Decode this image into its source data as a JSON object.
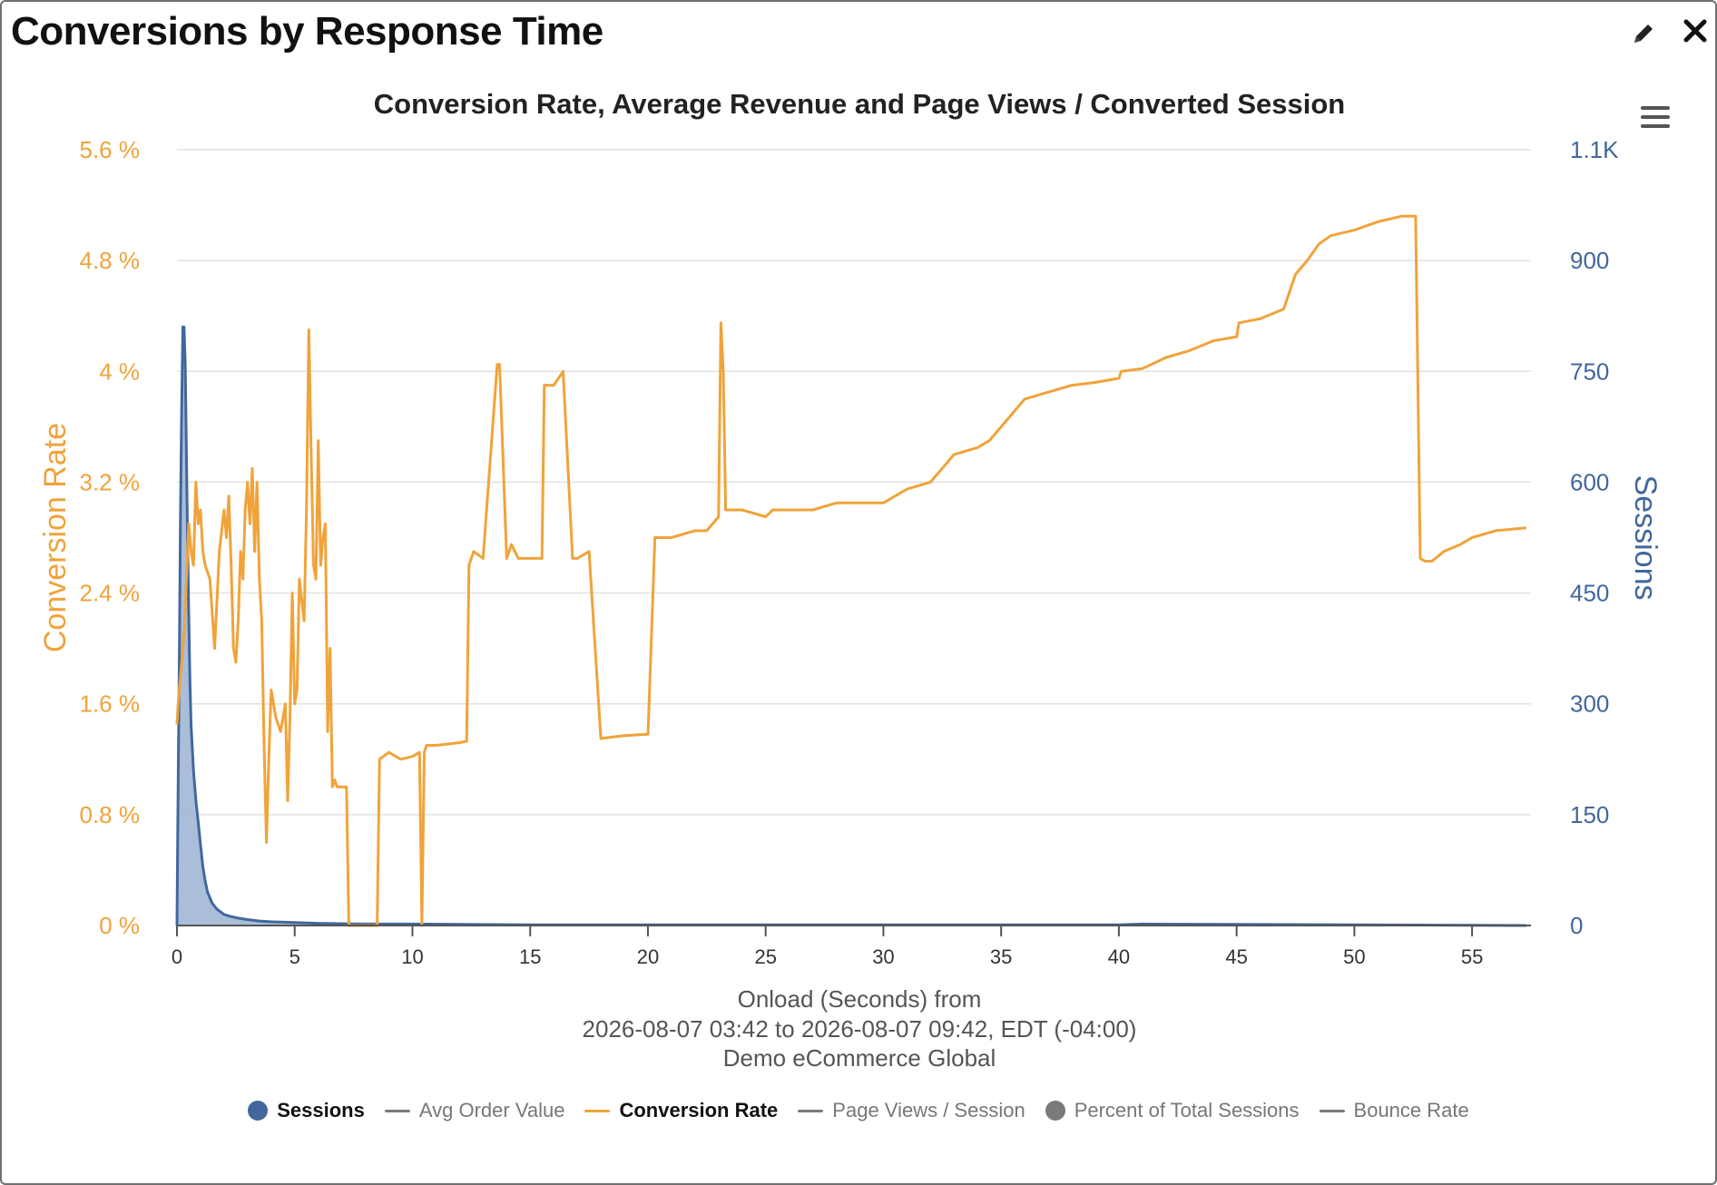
{
  "widget": {
    "title": "Conversions by Response Time",
    "icons": {
      "edit": "pencil-icon",
      "close": "close-icon",
      "menu": "hamburger-menu-icon"
    }
  },
  "chart_data": {
    "type": "line",
    "title": "Conversion Rate, Average Revenue and Page Views / Converted Session",
    "xlabel": "Onload (Seconds) from",
    "xlabel_lines": [
      "Onload (Seconds) from",
      "2026-08-07 03:42 to 2026-08-07 09:42, EDT (-04:00)",
      "Demo eCommerce Global"
    ],
    "x_ticks": [
      "0",
      "5",
      "10",
      "15",
      "20",
      "25",
      "30",
      "35",
      "40",
      "45",
      "50",
      "55"
    ],
    "xlim": [
      0,
      57.5
    ],
    "y_left": {
      "label": "Conversion Rate",
      "ticks": [
        "0 %",
        "0.8 %",
        "1.6 %",
        "2.4 %",
        "3.2 %",
        "4 %",
        "4.8 %",
        "5.6 %"
      ],
      "lim": [
        0,
        5.6
      ],
      "color": "#f0a33a"
    },
    "y_right": {
      "label": "Sessions",
      "ticks": [
        "0",
        "150",
        "300",
        "450",
        "600",
        "750",
        "900",
        "1.1K"
      ],
      "lim": [
        0,
        1050
      ],
      "color": "#41679c"
    },
    "grid": true,
    "legend_position": "bottom",
    "series": [
      {
        "name": "Sessions",
        "axis": "right",
        "kind": "area",
        "color": "#41679c",
        "fill": "#9bb3d4",
        "x": [
          0.0,
          0.05,
          0.1,
          0.15,
          0.2,
          0.25,
          0.3,
          0.35,
          0.4,
          0.45,
          0.5,
          0.55,
          0.6,
          0.7,
          0.8,
          0.9,
          1.0,
          1.1,
          1.2,
          1.3,
          1.5,
          1.7,
          2.0,
          2.3,
          2.6,
          3.0,
          3.5,
          4.0,
          5.0,
          6.0,
          8.0,
          10.0,
          15.0,
          20.0,
          30.0,
          40.0,
          41.0,
          50.0,
          57.3
        ],
        "values": [
          0,
          190,
          360,
          560,
          700,
          810,
          810,
          760,
          640,
          520,
          420,
          330,
          270,
          210,
          170,
          140,
          110,
          80,
          60,
          45,
          30,
          22,
          15,
          12,
          10,
          8,
          6,
          5,
          4,
          3,
          2,
          2,
          1,
          1,
          1,
          1,
          2,
          1,
          0
        ]
      },
      {
        "name": "Conversion Rate",
        "axis": "left",
        "kind": "line",
        "color": "#f0a33a",
        "x": [
          0.0,
          0.05,
          0.1,
          0.15,
          0.2,
          0.3,
          0.4,
          0.5,
          0.6,
          0.7,
          0.8,
          0.9,
          1.0,
          1.1,
          1.2,
          1.4,
          1.6,
          1.8,
          2.0,
          2.1,
          2.2,
          2.3,
          2.4,
          2.5,
          2.6,
          2.7,
          2.8,
          2.9,
          3.0,
          3.1,
          3.2,
          3.3,
          3.4,
          3.5,
          3.6,
          3.7,
          3.8,
          3.9,
          4.0,
          4.2,
          4.4,
          4.6,
          4.7,
          4.8,
          4.9,
          5.0,
          5.1,
          5.2,
          5.4,
          5.5,
          5.6,
          5.7,
          5.8,
          5.9,
          6.0,
          6.1,
          6.2,
          6.3,
          6.4,
          6.5,
          6.6,
          6.7,
          6.8,
          7.0,
          7.2,
          7.3,
          8.5,
          8.6,
          9.0,
          9.5,
          10.0,
          10.3,
          10.4,
          10.5,
          10.6,
          11.0,
          12.0,
          12.3,
          12.4,
          12.6,
          13.0,
          13.6,
          13.7,
          14.0,
          14.2,
          14.5,
          15.0,
          15.5,
          15.6,
          16.0,
          16.2,
          16.4,
          16.8,
          17.0,
          17.5,
          18.0,
          19.0,
          20.0,
          20.3,
          21.0,
          22.0,
          22.5,
          23.0,
          23.1,
          23.2,
          23.3,
          24.0,
          25.0,
          25.3,
          27.0,
          28.0,
          29.0,
          30.0,
          30.5,
          31.0,
          32.0,
          32.5,
          33.0,
          34.0,
          34.5,
          35.0,
          35.5,
          36.0,
          37.0,
          38.0,
          39.0,
          40.0,
          40.1,
          41.0,
          42.0,
          43.0,
          44.0,
          45.0,
          45.1,
          46.0,
          47.0,
          47.5,
          48.0,
          48.5,
          49.0,
          50.0,
          51.0,
          52.0,
          52.6,
          52.8,
          53.0,
          53.3,
          53.8,
          54.5,
          55.0,
          56.0,
          57.3
        ],
        "values": [
          1.45,
          1.6,
          1.7,
          1.8,
          1.9,
          2.1,
          2.5,
          2.9,
          2.7,
          2.6,
          3.2,
          2.9,
          3.0,
          2.7,
          2.6,
          2.5,
          2.0,
          2.7,
          3.0,
          2.8,
          3.1,
          2.6,
          2.0,
          1.9,
          2.2,
          2.7,
          2.5,
          3.0,
          3.2,
          2.9,
          3.3,
          2.7,
          3.2,
          2.5,
          2.2,
          1.3,
          0.6,
          1.2,
          1.7,
          1.5,
          1.4,
          1.6,
          0.9,
          1.5,
          2.4,
          1.6,
          1.7,
          2.5,
          2.2,
          3.0,
          4.3,
          3.4,
          2.6,
          2.5,
          3.5,
          2.6,
          2.8,
          2.9,
          1.4,
          2.0,
          1.0,
          1.05,
          1.0,
          1.0,
          1.0,
          0.0,
          0.0,
          1.2,
          1.25,
          1.2,
          1.22,
          1.25,
          0.0,
          1.25,
          1.3,
          1.3,
          1.32,
          1.33,
          2.6,
          2.7,
          2.65,
          4.05,
          4.05,
          2.65,
          2.75,
          2.65,
          2.65,
          2.65,
          3.9,
          3.9,
          3.95,
          4.0,
          2.65,
          2.65,
          2.7,
          1.35,
          1.37,
          1.38,
          2.8,
          2.8,
          2.85,
          2.85,
          2.95,
          4.35,
          4.0,
          3.0,
          3.0,
          2.95,
          3.0,
          3.0,
          3.05,
          3.05,
          3.05,
          3.1,
          3.15,
          3.2,
          3.3,
          3.4,
          3.45,
          3.5,
          3.6,
          3.7,
          3.8,
          3.85,
          3.9,
          3.92,
          3.95,
          4.0,
          4.02,
          4.1,
          4.15,
          4.22,
          4.25,
          4.35,
          4.38,
          4.45,
          4.7,
          4.8,
          4.92,
          4.98,
          5.02,
          5.08,
          5.12,
          5.12,
          2.65,
          2.63,
          2.63,
          2.7,
          2.75,
          2.8,
          2.85,
          2.87
        ]
      }
    ],
    "legend": [
      {
        "label": "Sessions",
        "marker": "circle",
        "color": "#41679c",
        "active": true
      },
      {
        "label": "Avg Order Value",
        "marker": "line",
        "color": "#7a7a7a",
        "active": false
      },
      {
        "label": "Conversion Rate",
        "marker": "line",
        "color": "#f0a33a",
        "active": true
      },
      {
        "label": "Page Views / Session",
        "marker": "line",
        "color": "#7a7a7a",
        "active": false
      },
      {
        "label": "Percent of Total Sessions",
        "marker": "circle",
        "color": "#7a7a7a",
        "active": false
      },
      {
        "label": "Bounce Rate",
        "marker": "line",
        "color": "#7a7a7a",
        "active": false
      }
    ]
  }
}
